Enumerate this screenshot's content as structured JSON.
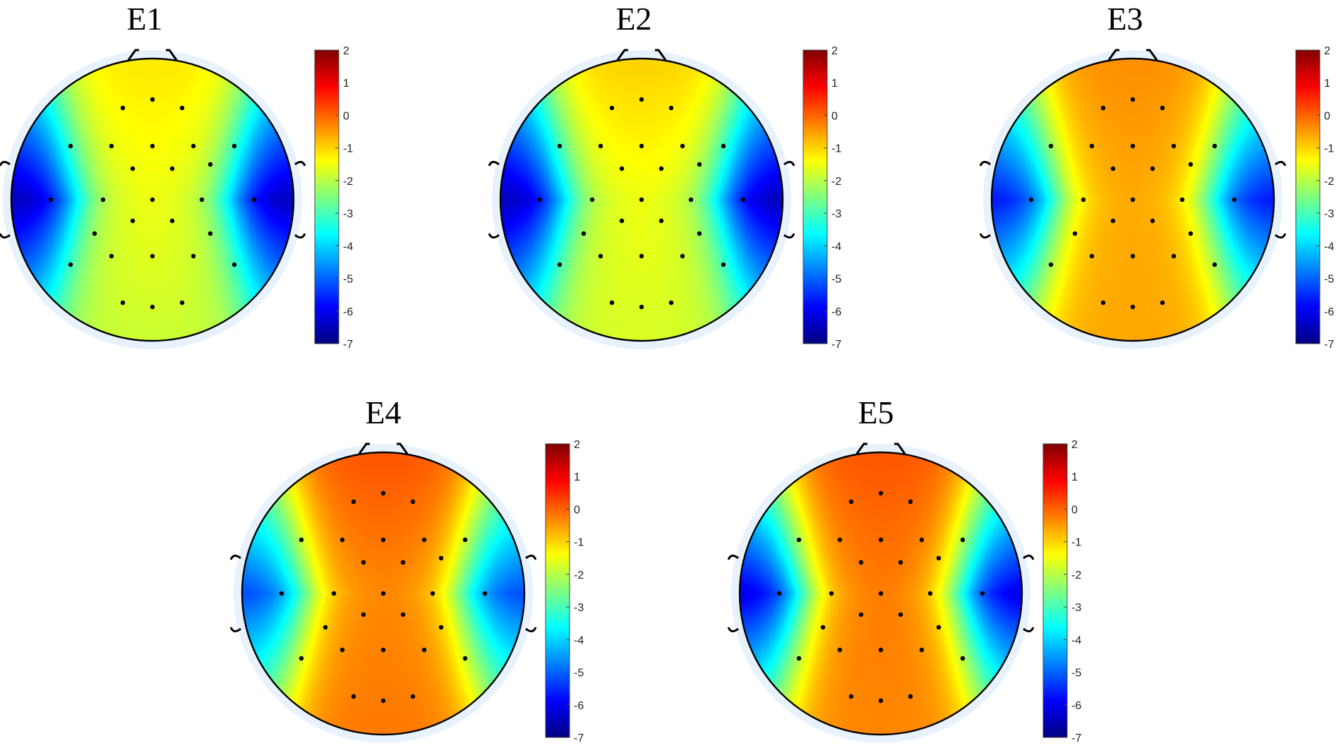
{
  "colormap": {
    "name": "jet",
    "stops": [
      "#00007f",
      "#0000ff",
      "#007fff",
      "#00ffff",
      "#7fff7f",
      "#ffff00",
      "#ff7f00",
      "#ff0000",
      "#7f0000"
    ]
  },
  "colorbar": {
    "min": -7,
    "max": 2,
    "ticks": [
      "2",
      "1",
      "0",
      "-1",
      "-2",
      "-3",
      "-4",
      "-5",
      "-6",
      "-7"
    ]
  },
  "electrode_color": "#000000",
  "head_outline_color": "#000000",
  "halo_color": "#e8f2fc",
  "panels": [
    {
      "title": "E1",
      "center_value": -1.5,
      "anterior_value": -1.2,
      "posterior_value": -1.8,
      "lateral_value": -6.6
    },
    {
      "title": "E2",
      "center_value": -1.5,
      "anterior_value": -1.0,
      "posterior_value": -1.7,
      "lateral_value": -6.6
    },
    {
      "title": "E3",
      "center_value": -0.6,
      "anterior_value": -0.4,
      "posterior_value": -0.6,
      "lateral_value": -5.8
    },
    {
      "title": "E4",
      "center_value": -0.3,
      "anterior_value": 0.1,
      "posterior_value": -0.2,
      "lateral_value": -5.3
    },
    {
      "title": "E5",
      "center_value": -0.2,
      "anterior_value": 0.1,
      "posterior_value": -0.3,
      "lateral_value": -6.2
    }
  ]
}
